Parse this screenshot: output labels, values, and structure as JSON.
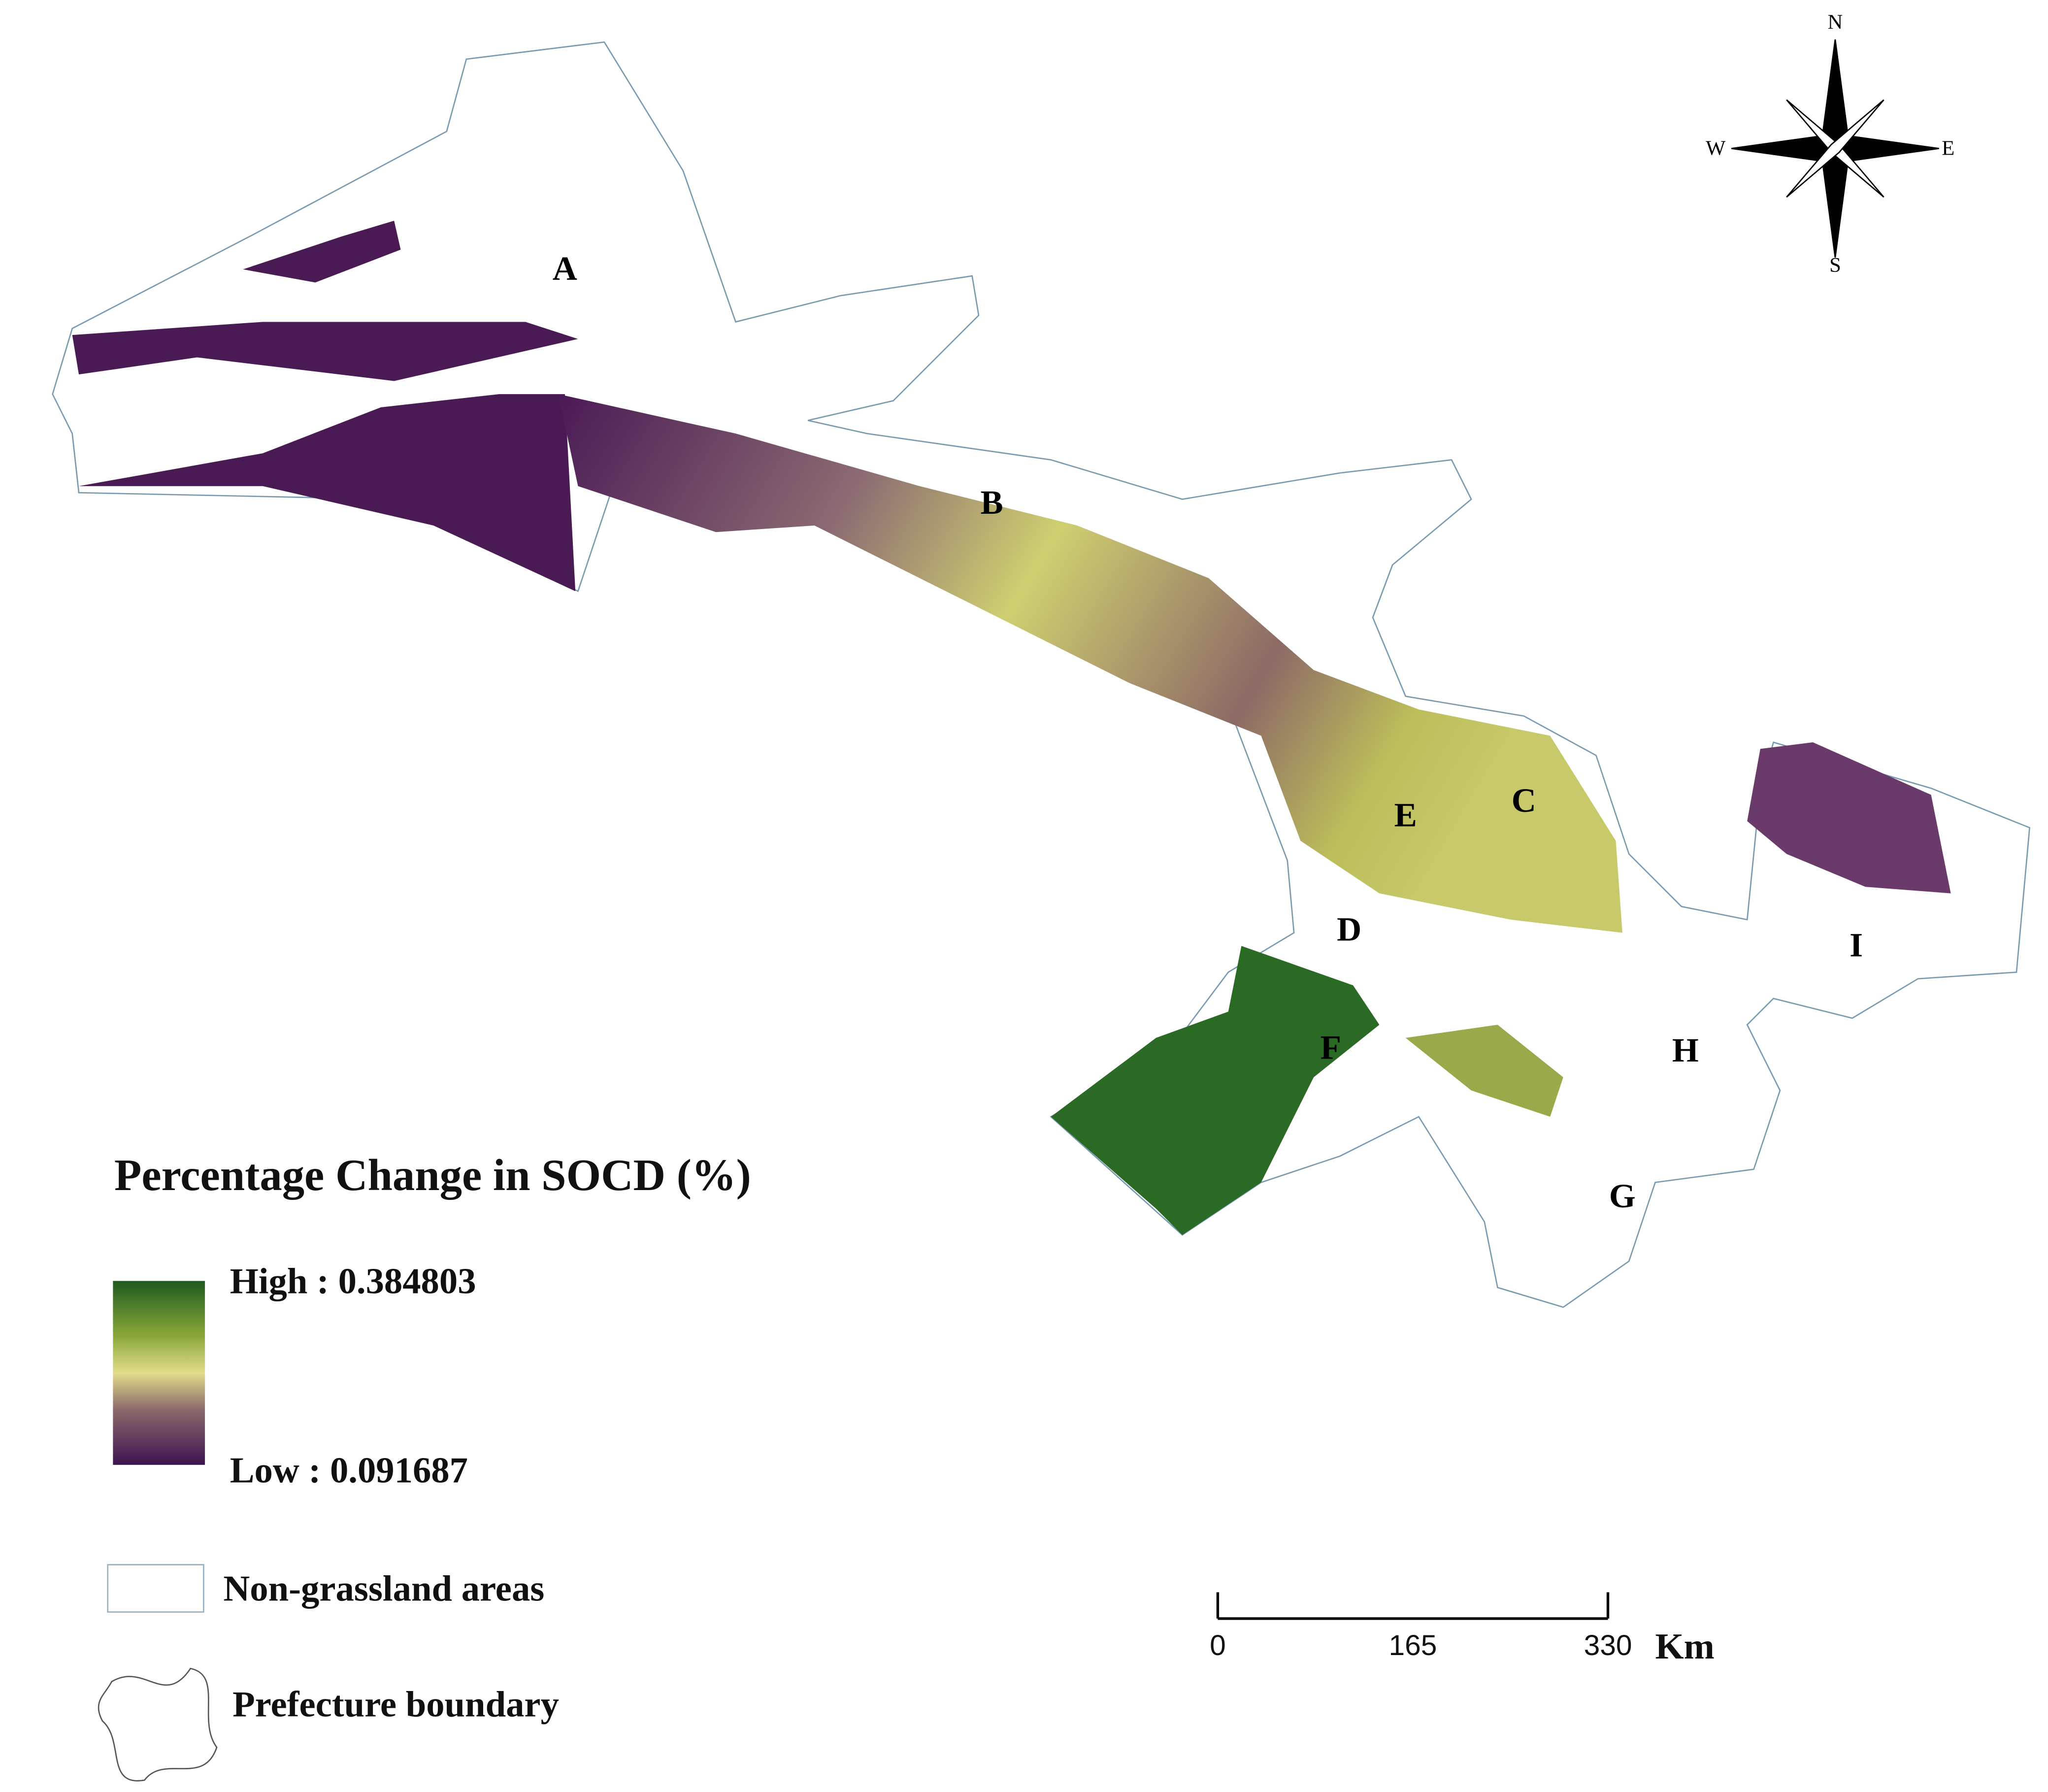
{
  "title": "Percentage Change in SOCD (%)",
  "legend": {
    "high": "High : 0.384803",
    "low": "Low : 0.091687",
    "non_grassland": "Non-grassland areas",
    "boundary": "Prefecture boundary"
  },
  "regions": [
    "A",
    "B",
    "C",
    "D",
    "E",
    "F",
    "G",
    "H",
    "I"
  ],
  "compass": {
    "n": "N",
    "e": "E",
    "s": "S",
    "w": "W"
  },
  "scale_bar": {
    "ticks": [
      0,
      165,
      330
    ],
    "unit": "Km"
  }
}
